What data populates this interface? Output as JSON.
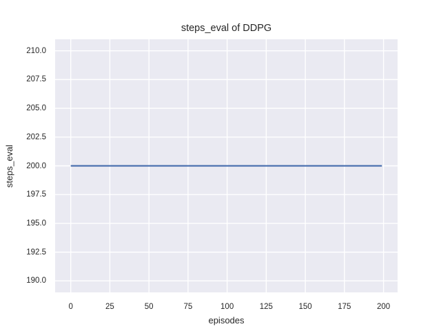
{
  "chart_data": {
    "type": "line",
    "title": "steps_eval of DDPG",
    "xlabel": "episodes",
    "ylabel": "steps_eval",
    "series": [
      {
        "name": "steps_eval",
        "x": [
          0,
          199
        ],
        "values": [
          200,
          200
        ]
      }
    ],
    "xlim": [
      -10,
      209
    ],
    "ylim": [
      189,
      211
    ],
    "xticks": [
      0,
      25,
      50,
      75,
      100,
      125,
      150,
      175,
      200
    ],
    "xtick_labels": [
      "0",
      "25",
      "50",
      "75",
      "100",
      "125",
      "150",
      "175",
      "200"
    ],
    "yticks": [
      190.0,
      192.5,
      195.0,
      197.5,
      200.0,
      202.5,
      205.0,
      207.5,
      210.0
    ],
    "ytick_labels": [
      "190.0",
      "192.5",
      "195.0",
      "197.5",
      "200.0",
      "202.5",
      "205.0",
      "207.5",
      "210.0"
    ],
    "grid": true,
    "legend": null,
    "style": {
      "figure_bg": "#FFFFFF",
      "axes_bg": "#EAEAF2",
      "grid_color": "#FFFFFF",
      "line_color": "#4C72B0",
      "text_color": "#262626",
      "line_width": 2.2,
      "grid_width": 1.4
    }
  }
}
